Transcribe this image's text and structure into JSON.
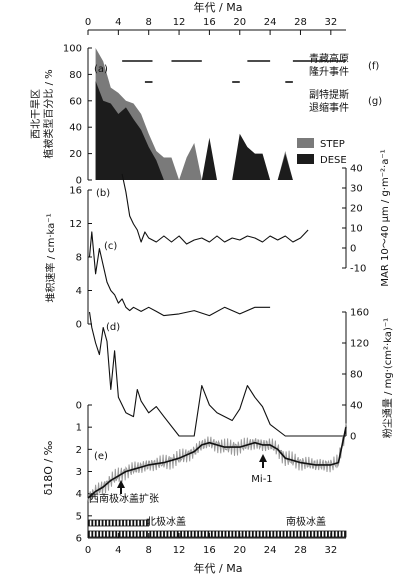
{
  "chart_data": [
    {
      "type": "area",
      "panel": "a",
      "ylabel": "西北干旱区植被类型百分比 / %",
      "xlabel_top": "年代 / Ma",
      "xlim": [
        0,
        34
      ],
      "ylim": [
        0,
        100
      ],
      "x_ticks": [
        0,
        4,
        8,
        12,
        16,
        20,
        24,
        28,
        32
      ],
      "y_ticks": [
        0,
        20,
        40,
        60,
        80,
        100
      ],
      "x": [
        1,
        2,
        3,
        4,
        5,
        6,
        7,
        8,
        9,
        10,
        11,
        12,
        13,
        14,
        15,
        16,
        17,
        18,
        19,
        20,
        21,
        22,
        23,
        24,
        25,
        26,
        27
      ],
      "series": [
        {
          "name": "STEP",
          "color": "#7a7a7a",
          "values": [
            100,
            90,
            70,
            66,
            60,
            58,
            50,
            35,
            22,
            17,
            17,
            0,
            17,
            28,
            0,
            0,
            0,
            0,
            0,
            0,
            0,
            0,
            0,
            0,
            0,
            22,
            0
          ]
        },
        {
          "name": "DESE",
          "color": "#1c1c1c",
          "values": [
            75,
            60,
            58,
            50,
            55,
            46,
            38,
            25,
            15,
            0,
            0,
            0,
            0,
            0,
            0,
            32,
            0,
            0,
            0,
            35,
            25,
            20,
            20,
            0,
            0,
            20,
            0
          ]
        }
      ],
      "legend": [
        "STEP",
        "DESE"
      ],
      "legend_position": "right"
    },
    {
      "type": "bar",
      "panel": "f",
      "label": "青藏高原隆升事件",
      "x_unit": "Ma",
      "events": [
        [
          4.5,
          8.5
        ],
        [
          11,
          15
        ],
        [
          21,
          24
        ],
        [
          27,
          34
        ]
      ]
    },
    {
      "type": "bar",
      "panel": "g",
      "label": "副特提斯退缩事件",
      "x_unit": "Ma",
      "events": [
        [
          7.5,
          8.5
        ],
        [
          19,
          20
        ],
        [
          26,
          27
        ]
      ]
    },
    {
      "type": "line",
      "panel": "b",
      "ylabel": "MAR 10～40 μm / g·m⁻²·a⁻¹",
      "ylim": [
        -10,
        40
      ],
      "y_ticks": [
        -10,
        0,
        10,
        20,
        30,
        40
      ],
      "x": [
        4.5,
        5,
        5.5,
        6,
        6.5,
        7,
        7.5,
        8,
        9,
        10,
        11,
        12,
        13,
        14,
        15,
        16,
        17,
        18,
        19,
        20,
        21,
        22,
        23,
        24,
        25,
        26,
        27,
        28,
        29
      ],
      "y": [
        37,
        28,
        16,
        12,
        9,
        3,
        8,
        5,
        3,
        6,
        3,
        6,
        2,
        4,
        5,
        3,
        6,
        3,
        5,
        4,
        6,
        5,
        3,
        6,
        4,
        6,
        3,
        5,
        9
      ]
    },
    {
      "type": "line",
      "panel": "c",
      "ylabel": "堆积速率 / cm·ka⁻¹",
      "ylim": [
        0,
        16
      ],
      "y_ticks": [
        0,
        4,
        8,
        12,
        16
      ],
      "x": [
        0.2,
        0.5,
        1,
        1.5,
        2,
        2.5,
        3,
        3.5,
        4,
        4.5,
        5,
        5.5,
        6,
        7,
        8,
        9,
        10,
        12,
        14,
        16,
        18,
        20,
        22,
        24
      ],
      "y": [
        8,
        11,
        6,
        9,
        7,
        5,
        4,
        3.5,
        2.5,
        3,
        2,
        1.6,
        2,
        1.5,
        2,
        1.5,
        1,
        1.2,
        1.6,
        1,
        2,
        1.2,
        2,
        2
      ]
    },
    {
      "type": "line",
      "panel": "d",
      "ylabel": "粉尘通量 / mg·(cm²·ka)⁻¹",
      "ylim": [
        0,
        160
      ],
      "y_ticks": [
        0,
        40,
        80,
        120,
        160
      ],
      "x": [
        0.2,
        0.5,
        1,
        1.5,
        2,
        2.5,
        3,
        3.5,
        4,
        5,
        6,
        6.5,
        7,
        8,
        9,
        10,
        12,
        13,
        14,
        15,
        16,
        17,
        18,
        19,
        20,
        21,
        22,
        23,
        24,
        26,
        28,
        30,
        32,
        34
      ],
      "y": [
        160,
        140,
        120,
        105,
        140,
        122,
        60,
        110,
        50,
        30,
        25,
        60,
        45,
        30,
        38,
        25,
        0,
        0,
        0,
        65,
        40,
        30,
        25,
        20,
        35,
        65,
        50,
        38,
        15,
        0,
        0,
        0,
        0,
        0
      ]
    },
    {
      "type": "line",
      "panel": "e",
      "ylabel": "δ18O / ‰",
      "xlabel": "年代 / Ma",
      "xlim": [
        0,
        34
      ],
      "ylim": [
        0,
        6
      ],
      "y_inverted": true,
      "x_ticks": [
        0,
        4,
        8,
        12,
        16,
        20,
        24,
        28,
        32
      ],
      "y_ticks": [
        0,
        1,
        2,
        3,
        4,
        5,
        6
      ],
      "x": [
        0,
        1,
        2,
        3,
        4,
        5,
        6,
        7,
        8,
        10,
        12,
        14,
        15,
        16,
        18,
        20,
        22,
        23,
        24,
        25,
        26,
        28,
        30,
        32,
        33,
        34
      ],
      "y": [
        4.2,
        3.9,
        3.7,
        3.4,
        3.2,
        3.0,
        2.9,
        2.8,
        2.7,
        2.6,
        2.4,
        2.1,
        1.8,
        1.7,
        1.9,
        1.9,
        1.7,
        1.8,
        1.8,
        2.0,
        2.4,
        2.6,
        2.7,
        2.7,
        2.6,
        1.0
      ],
      "annotations": [
        {
          "text": "西南极冰盖扩张",
          "x": 5
        },
        {
          "text": "Mi-1",
          "x": 23.5
        }
      ],
      "ice_sheets": [
        {
          "label": "北极冰盖",
          "range": [
            0,
            8
          ]
        },
        {
          "label": "南极冰盖",
          "range": [
            0,
            34
          ]
        }
      ]
    }
  ],
  "labels": {
    "top_axis_title": "年代 / Ma",
    "bottom_axis_title": "年代 / Ma",
    "panel_a": "(a)",
    "panel_b": "(b)",
    "panel_c": "(c)",
    "panel_d": "(d)",
    "panel_e": "(e)",
    "panel_f": "(f)",
    "panel_g": "(g)",
    "f_line1": "青藏高原",
    "f_line2": "隆升事件",
    "g_line1": "副特提斯",
    "g_line2": "退缩事件",
    "a_ylabel_line1": "西北干旱区",
    "a_ylabel_line2": "植被类型百分比 / %",
    "b_ylabel": "MAR 10～40 μm / g·m⁻²·a⁻¹",
    "c_ylabel": "堆积速率 / cm·ka⁻¹",
    "d_ylabel": "粉尘通量 / mg·(cm²·ka)⁻¹",
    "e_ylabel": "δ18O / ‰",
    "legend_step": "STEP",
    "legend_dese": "DESE",
    "annot_wais": "西南极冰盖扩张",
    "annot_mi1": "Mi-1",
    "north_ice": "北极冰盖",
    "south_ice": "南极冰盖"
  }
}
